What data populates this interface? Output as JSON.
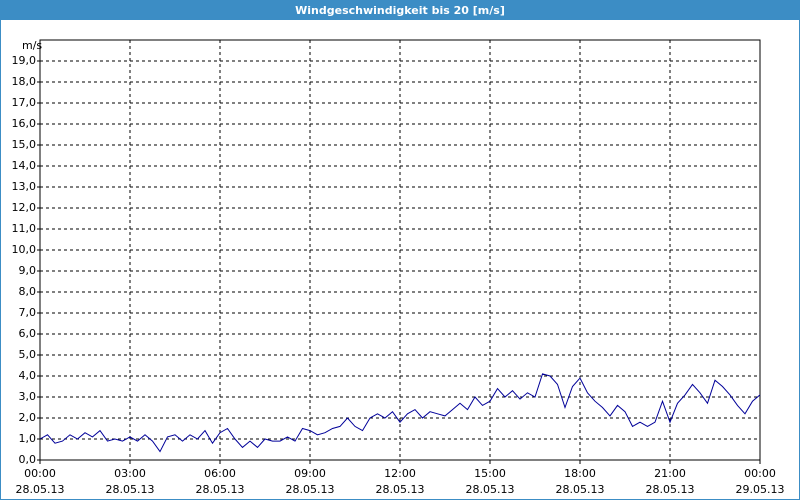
{
  "chart_data": {
    "type": "line",
    "title": "Windgeschwindigkeit bis 20 [m/s]",
    "y_label": "m/s",
    "x": [
      0,
      0.25,
      0.5,
      0.75,
      1,
      1.25,
      1.5,
      1.75,
      2,
      2.25,
      2.5,
      2.75,
      3,
      3.25,
      3.5,
      3.75,
      4,
      4.25,
      4.5,
      4.75,
      5,
      5.25,
      5.5,
      5.75,
      6,
      6.25,
      6.5,
      6.75,
      7,
      7.25,
      7.5,
      7.75,
      8,
      8.25,
      8.5,
      8.75,
      9,
      9.25,
      9.5,
      9.75,
      10,
      10.25,
      10.5,
      10.75,
      11,
      11.25,
      11.5,
      11.75,
      12,
      12.25,
      12.5,
      12.75,
      13,
      13.25,
      13.5,
      13.75,
      14,
      14.25,
      14.5,
      14.75,
      15,
      15.25,
      15.5,
      15.75,
      16,
      16.25,
      16.5,
      16.75,
      17,
      17.25,
      17.5,
      17.75,
      18,
      18.25,
      18.5,
      18.75,
      19,
      19.25,
      19.5,
      19.75,
      20,
      20.25,
      20.5,
      20.75,
      21,
      21.25,
      21.5,
      21.75,
      22,
      22.25,
      22.5,
      22.75,
      23,
      23.25,
      23.5,
      23.75,
      24
    ],
    "series": [
      {
        "color": "#000099",
        "values": [
          1.0,
          1.2,
          0.8,
          0.9,
          1.2,
          1.0,
          1.3,
          1.1,
          1.4,
          0.9,
          1.0,
          0.9,
          1.1,
          0.9,
          1.2,
          0.9,
          0.4,
          1.1,
          1.2,
          0.9,
          1.2,
          1.0,
          1.4,
          0.8,
          1.3,
          1.5,
          1.0,
          0.6,
          0.9,
          0.6,
          1.0,
          0.9,
          0.9,
          1.1,
          0.9,
          1.5,
          1.4,
          1.2,
          1.3,
          1.5,
          1.6,
          2.0,
          1.6,
          1.4,
          2.0,
          2.2,
          2.0,
          2.3,
          1.8,
          2.2,
          2.4,
          2.0,
          2.3,
          2.2,
          2.1,
          2.4,
          2.7,
          2.4,
          3.0,
          2.6,
          2.8,
          3.4,
          3.0,
          3.3,
          2.9,
          3.2,
          3.0,
          4.1,
          4.0,
          3.6,
          2.5,
          3.5,
          3.9,
          3.2,
          2.8,
          2.5,
          2.1,
          2.6,
          2.3,
          1.6,
          1.8,
          1.6,
          1.8,
          2.8,
          1.8,
          2.7,
          3.1,
          3.6,
          3.2,
          2.7,
          3.8,
          3.5,
          3.1,
          2.6,
          2.2,
          2.8,
          3.1
        ]
      }
    ],
    "xlim": [
      0,
      24
    ],
    "xticks": [
      {
        "value": 0,
        "label": "00:00"
      },
      {
        "value": 3,
        "label": "03:00"
      },
      {
        "value": 6,
        "label": "06:00"
      },
      {
        "value": 9,
        "label": "09:00"
      },
      {
        "value": 12,
        "label": "12:00"
      },
      {
        "value": 15,
        "label": "15:00"
      },
      {
        "value": 18,
        "label": "18:00"
      },
      {
        "value": 21,
        "label": "21:00"
      },
      {
        "value": 24,
        "label": "00:00"
      }
    ],
    "xtick_dates": [
      "28.05.13",
      "28.05.13",
      "28.05.13",
      "28.05.13",
      "28.05.13",
      "28.05.13",
      "28.05.13",
      "28.05.13",
      "29.05.13"
    ],
    "ylim": [
      0,
      20
    ],
    "yticks": [
      {
        "value": 0,
        "label": "0,0"
      },
      {
        "value": 1,
        "label": "1,0"
      },
      {
        "value": 2,
        "label": "2,0"
      },
      {
        "value": 3,
        "label": "3,0"
      },
      {
        "value": 4,
        "label": "4,0"
      },
      {
        "value": 5,
        "label": "5,0"
      },
      {
        "value": 6,
        "label": "6,0"
      },
      {
        "value": 7,
        "label": "7,0"
      },
      {
        "value": 8,
        "label": "8,0"
      },
      {
        "value": 9,
        "label": "9,0"
      },
      {
        "value": 10,
        "label": "10,0"
      },
      {
        "value": 11,
        "label": "11,0"
      },
      {
        "value": 12,
        "label": "12,0"
      },
      {
        "value": 13,
        "label": "13,0"
      },
      {
        "value": 14,
        "label": "14,0"
      },
      {
        "value": 15,
        "label": "15,0"
      },
      {
        "value": 16,
        "label": "16,0"
      },
      {
        "value": 17,
        "label": "17,0"
      },
      {
        "value": 18,
        "label": "18,0"
      },
      {
        "value": 19,
        "label": "19,0"
      }
    ],
    "grid": true
  }
}
